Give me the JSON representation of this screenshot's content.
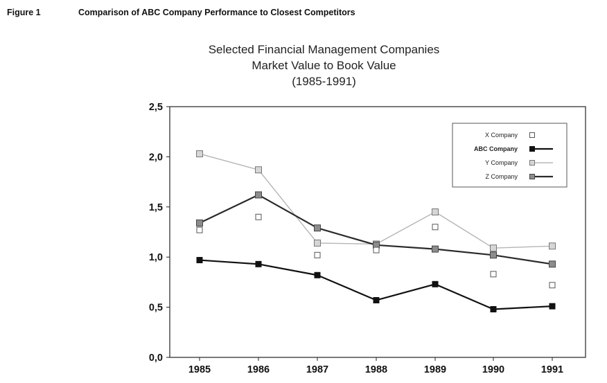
{
  "figure": {
    "label": "Figure 1",
    "caption": "Comparison of ABC Company Performance to Closest Competitors"
  },
  "chart_data": {
    "type": "line",
    "title": "Selected Financial Management Companies",
    "subtitle": "Market Value to Book Value",
    "period": "(1985-1991)",
    "categories": [
      "1985",
      "1986",
      "1987",
      "1988",
      "1989",
      "1990",
      "1991"
    ],
    "y_tick_labels": [
      "0,0",
      "0,5",
      "1,0",
      "1,5",
      "2,0",
      "2,5"
    ],
    "ylim": [
      0,
      2.5
    ],
    "grid": false,
    "legend_position": "top-right",
    "series": [
      {
        "name": "X Company",
        "style": "markers-only",
        "marker": "open-square",
        "color": "#ffffff",
        "values": [
          1.27,
          1.4,
          1.02,
          1.07,
          1.3,
          0.83,
          0.72
        ]
      },
      {
        "name": "ABC Company",
        "style": "line",
        "marker": "filled-square",
        "color": "#111111",
        "values": [
          0.97,
          0.93,
          0.82,
          0.57,
          0.73,
          0.48,
          0.51
        ]
      },
      {
        "name": "Y Company",
        "style": "line",
        "marker": "light-square",
        "color": "#b5b5b5",
        "values": [
          2.03,
          1.87,
          1.14,
          1.13,
          1.45,
          1.09,
          1.11
        ]
      },
      {
        "name": "Z Company",
        "style": "line",
        "marker": "gray-square",
        "color": "#2a2a2a",
        "values": [
          1.34,
          1.62,
          1.29,
          1.12,
          1.08,
          1.02,
          0.93
        ]
      }
    ]
  }
}
